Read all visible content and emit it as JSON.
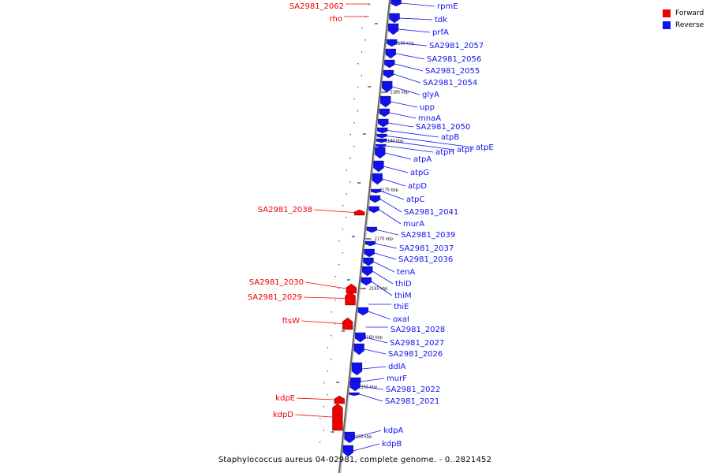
{
  "colors": {
    "forward": "#ee0000",
    "reverse": "#1111ee",
    "backbone": "#888888"
  },
  "legend": [
    {
      "label": "Forward",
      "strand": "forward"
    },
    {
      "label": "Reverse",
      "strand": "reverse"
    }
  ],
  "caption": "Staphylococcus aureus 04-02981, complete genome. - 0..2821452",
  "ticks": [
    "2190 kbp",
    "2185 kbp",
    "2180 kbp",
    "2175 kbp",
    "2170 kbp",
    "2165 kbp",
    "2160 kbp",
    "2155 kbp",
    "2150 kbp"
  ],
  "genes": [
    {
      "name": "SA2981_2062",
      "strand": "forward"
    },
    {
      "name": "rho",
      "strand": "forward"
    },
    {
      "name": "rpmE",
      "strand": "reverse"
    },
    {
      "name": "tdk",
      "strand": "reverse"
    },
    {
      "name": "prfA",
      "strand": "reverse"
    },
    {
      "name": "SA2981_2057",
      "strand": "reverse"
    },
    {
      "name": "SA2981_2056",
      "strand": "reverse"
    },
    {
      "name": "SA2981_2055",
      "strand": "reverse"
    },
    {
      "name": "SA2981_2054",
      "strand": "reverse"
    },
    {
      "name": "glyA",
      "strand": "reverse"
    },
    {
      "name": "upp",
      "strand": "reverse"
    },
    {
      "name": "mnaA",
      "strand": "reverse"
    },
    {
      "name": "SA2981_2050",
      "strand": "reverse"
    },
    {
      "name": "atpB",
      "strand": "reverse"
    },
    {
      "name": "atpE",
      "strand": "reverse"
    },
    {
      "name": "atpF",
      "strand": "reverse"
    },
    {
      "name": "atpH",
      "strand": "reverse"
    },
    {
      "name": "atpA",
      "strand": "reverse"
    },
    {
      "name": "atpG",
      "strand": "reverse"
    },
    {
      "name": "atpD",
      "strand": "reverse"
    },
    {
      "name": "atpC",
      "strand": "reverse"
    },
    {
      "name": "SA2981_2041",
      "strand": "reverse"
    },
    {
      "name": "murA",
      "strand": "reverse"
    },
    {
      "name": "SA2981_2039",
      "strand": "reverse"
    },
    {
      "name": "SA2981_2038",
      "strand": "forward"
    },
    {
      "name": "SA2981_2037",
      "strand": "reverse"
    },
    {
      "name": "SA2981_2036",
      "strand": "reverse"
    },
    {
      "name": "tenA",
      "strand": "reverse"
    },
    {
      "name": "thiD",
      "strand": "reverse"
    },
    {
      "name": "thiM",
      "strand": "reverse"
    },
    {
      "name": "thiE",
      "strand": "reverse"
    },
    {
      "name": "SA2981_2030",
      "strand": "forward"
    },
    {
      "name": "SA2981_2029",
      "strand": "forward"
    },
    {
      "name": "oxaI",
      "strand": "reverse"
    },
    {
      "name": "ftsW",
      "strand": "forward"
    },
    {
      "name": "SA2981_2028",
      "strand": "reverse"
    },
    {
      "name": "SA2981_2027",
      "strand": "reverse"
    },
    {
      "name": "SA2981_2026",
      "strand": "reverse"
    },
    {
      "name": "ddlA",
      "strand": "reverse"
    },
    {
      "name": "murF",
      "strand": "reverse"
    },
    {
      "name": "SA2981_2022",
      "strand": "reverse"
    },
    {
      "name": "SA2981_2021",
      "strand": "reverse"
    },
    {
      "name": "kdpE",
      "strand": "forward"
    },
    {
      "name": "kdpD",
      "strand": "forward"
    },
    {
      "name": "kdpA",
      "strand": "reverse"
    },
    {
      "name": "kdpB",
      "strand": "reverse"
    }
  ]
}
